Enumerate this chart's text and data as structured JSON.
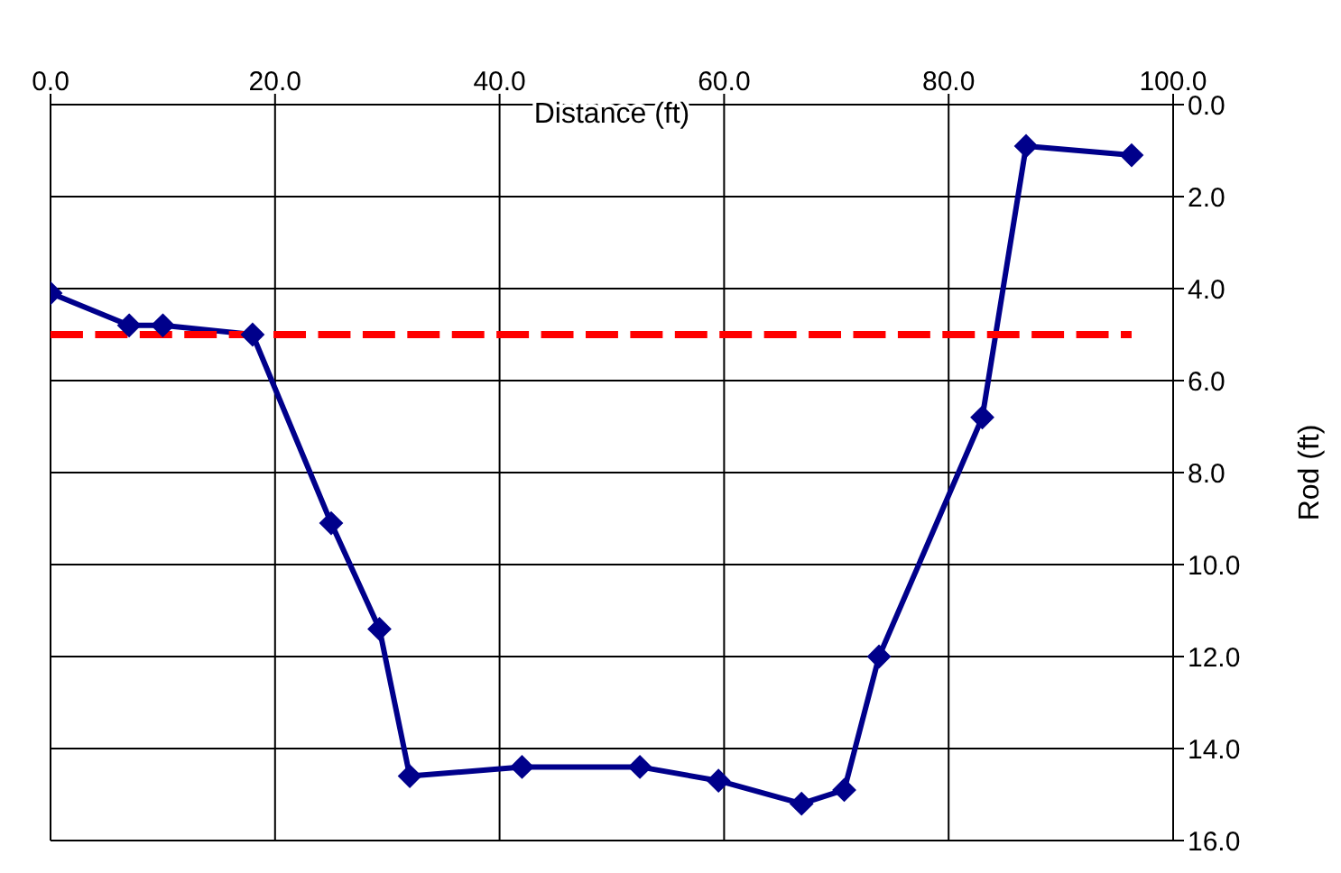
{
  "chart_data": {
    "type": "line",
    "xlabel": "Distance (ft)",
    "ylabel": "Rod (ft)",
    "xlim": [
      0,
      100
    ],
    "xticks": [
      {
        "value": 0,
        "label": "0.0"
      },
      {
        "value": 20,
        "label": "20.0"
      },
      {
        "value": 40,
        "label": "40.0"
      },
      {
        "value": 60,
        "label": "60.0"
      },
      {
        "value": 80,
        "label": "80.0"
      },
      {
        "value": 100,
        "label": "100.0"
      }
    ],
    "ylim": [
      16,
      0
    ],
    "yticks": [
      {
        "value": 0,
        "label": "0.0"
      },
      {
        "value": 2,
        "label": "2.0"
      },
      {
        "value": 4,
        "label": "4.0"
      },
      {
        "value": 6,
        "label": "6.0"
      },
      {
        "value": 8,
        "label": "8.0"
      },
      {
        "value": 10,
        "label": "10.0"
      },
      {
        "value": 12,
        "label": "12.0"
      },
      {
        "value": 14,
        "label": "14.0"
      },
      {
        "value": 16,
        "label": "16.0"
      }
    ],
    "grid": true,
    "legend": false,
    "series": [
      {
        "color": "#00008b",
        "marker": "diamond",
        "line_style": "solid",
        "x": [
          0,
          7,
          10,
          18,
          25,
          29.3,
          32,
          42,
          52.5,
          59.5,
          66.9,
          70.7,
          73.8,
          83,
          86.9,
          96.3
        ],
        "values": [
          4.1,
          4.8,
          4.8,
          5.0,
          9.1,
          11.4,
          14.6,
          14.4,
          14.4,
          14.7,
          15.2,
          14.9,
          12.0,
          6.8,
          0.9,
          1.1
        ]
      },
      {
        "color": "#ff0000",
        "marker": "none",
        "line_style": "dashed",
        "x": [
          0,
          96.3
        ],
        "values": [
          5.0,
          5.0
        ]
      }
    ]
  }
}
